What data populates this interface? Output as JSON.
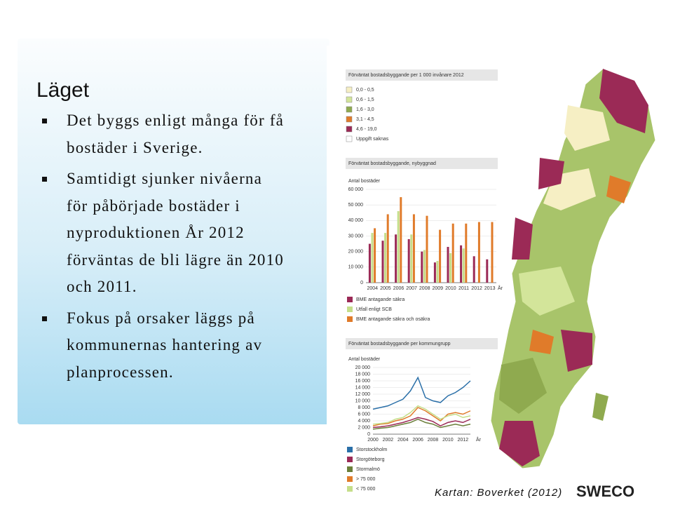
{
  "slide": {
    "title": "Läget",
    "bullets": [
      [
        "Det byggs enligt många för få",
        "bostäder i Sverige."
      ],
      [
        "Samtidigt sjunker nivåerna",
        "för påbörjade bostäder i",
        "nyproduktionen År 2012",
        "förväntas de bli lägre än 2010",
        "och 2011."
      ],
      [
        "Fokus på orsaker läggs på",
        "kommunernas hantering av",
        "planprocessen."
      ]
    ],
    "source": "Kartan: Boverket (2012)",
    "logo": "SWECO"
  },
  "map": {
    "title": "Förväntat bostadsbyggande per 1 000 invånare 2012",
    "legend": [
      {
        "label": "0,0 - 0,5",
        "color": "#f6efc4"
      },
      {
        "label": "0,6 - 1,5",
        "color": "#d3e59a"
      },
      {
        "label": "1,6 - 3,0",
        "color": "#8faa4f"
      },
      {
        "label": "3,1 - 4,5",
        "color": "#e07b2a"
      },
      {
        "label": "4,6 - 19,0",
        "color": "#9b2a56"
      },
      {
        "label": "Uppgift saknas",
        "color": "#ffffff"
      }
    ]
  },
  "chart_data": [
    {
      "type": "bar",
      "title": "Förväntat bostadsbyggande, nybyggnad",
      "y_label": "Antal bostäder",
      "x_unit": "År",
      "categories": [
        "2004",
        "2005",
        "2006",
        "2007",
        "2008",
        "2009",
        "2010",
        "2011",
        "2012",
        "2013"
      ],
      "ylim": [
        0,
        60000
      ],
      "yticks": [
        0,
        {
          "value": 10000,
          "label": "10 000"
        },
        {
          "value": 20000,
          "label": "20 000"
        },
        {
          "value": 30000,
          "label": "30 000"
        },
        {
          "value": 40000,
          "label": "40 000"
        },
        {
          "value": 50000,
          "label": "50 000"
        },
        {
          "value": 60000,
          "label": "60 000"
        }
      ],
      "series": [
        {
          "name": "BME antagande säkra",
          "color": "#9b2a56",
          "values": [
            25000,
            27000,
            31000,
            28000,
            20000,
            13000,
            23000,
            24000,
            17000,
            15000
          ]
        },
        {
          "name": "Utfall enligt SCB",
          "color": "#c5de8a",
          "values": [
            32000,
            32000,
            46000,
            31000,
            21000,
            14000,
            19000,
            22000,
            null,
            null
          ]
        },
        {
          "name": "BME antagande säkra och osäkra",
          "color": "#e07b2a",
          "values": [
            35000,
            44000,
            55000,
            44000,
            43000,
            34000,
            38000,
            38000,
            39000,
            39000
          ]
        }
      ]
    },
    {
      "type": "line",
      "title": "Förväntat bostadsbyggande per kommungrupp",
      "y_label": "Antal bostäder",
      "x_unit": "År",
      "x": [
        2000,
        2001,
        2002,
        2003,
        2004,
        2005,
        2006,
        2007,
        2008,
        2009,
        2010,
        2011,
        2012,
        2013
      ],
      "xlim": [
        2000,
        2013
      ],
      "xticks": [
        2000,
        2002,
        2004,
        2006,
        2008,
        2010,
        2012
      ],
      "ylim": [
        0,
        20000
      ],
      "yticks": [
        0,
        {
          "value": 2000,
          "label": "2 000"
        },
        {
          "value": 4000,
          "label": "4 000"
        },
        {
          "value": 6000,
          "label": "6 000"
        },
        {
          "value": 8000,
          "label": "8 000"
        },
        {
          "value": 10000,
          "label": "10 000"
        },
        {
          "value": 12000,
          "label": "12 000"
        },
        {
          "value": 14000,
          "label": "14 000"
        },
        {
          "value": 16000,
          "label": "16 000"
        },
        {
          "value": 18000,
          "label": "18 000"
        },
        {
          "value": 20000,
          "label": "20 000"
        }
      ],
      "series": [
        {
          "name": "Storstockholm",
          "color": "#2a6fa8",
          "values": [
            7500,
            8000,
            8500,
            9500,
            10500,
            13000,
            17000,
            11000,
            10000,
            9500,
            11500,
            12500,
            14000,
            16000
          ]
        },
        {
          "name": "Storgöteborg",
          "color": "#9b2a56",
          "values": [
            2000,
            2200,
            2500,
            3000,
            3500,
            4200,
            5000,
            4500,
            3800,
            2500,
            3500,
            4000,
            3500,
            4500
          ]
        },
        {
          "name": "Stormalmö",
          "color": "#6b7f3a",
          "values": [
            1500,
            1800,
            2000,
            2500,
            3000,
            3500,
            4500,
            3500,
            3000,
            2000,
            2500,
            3000,
            2500,
            3000
          ]
        },
        {
          "name": "> 75 000",
          "color": "#e07b2a",
          "values": [
            2500,
            3000,
            3200,
            4000,
            4500,
            5500,
            8000,
            7000,
            5500,
            4000,
            6000,
            6500,
            6000,
            7000
          ]
        },
        {
          "name": "< 75 000",
          "color": "#c5de8a",
          "values": [
            3000,
            3200,
            3500,
            4500,
            5000,
            6500,
            8500,
            7500,
            6000,
            4500,
            5500,
            6000,
            5000,
            5500
          ]
        }
      ]
    }
  ]
}
